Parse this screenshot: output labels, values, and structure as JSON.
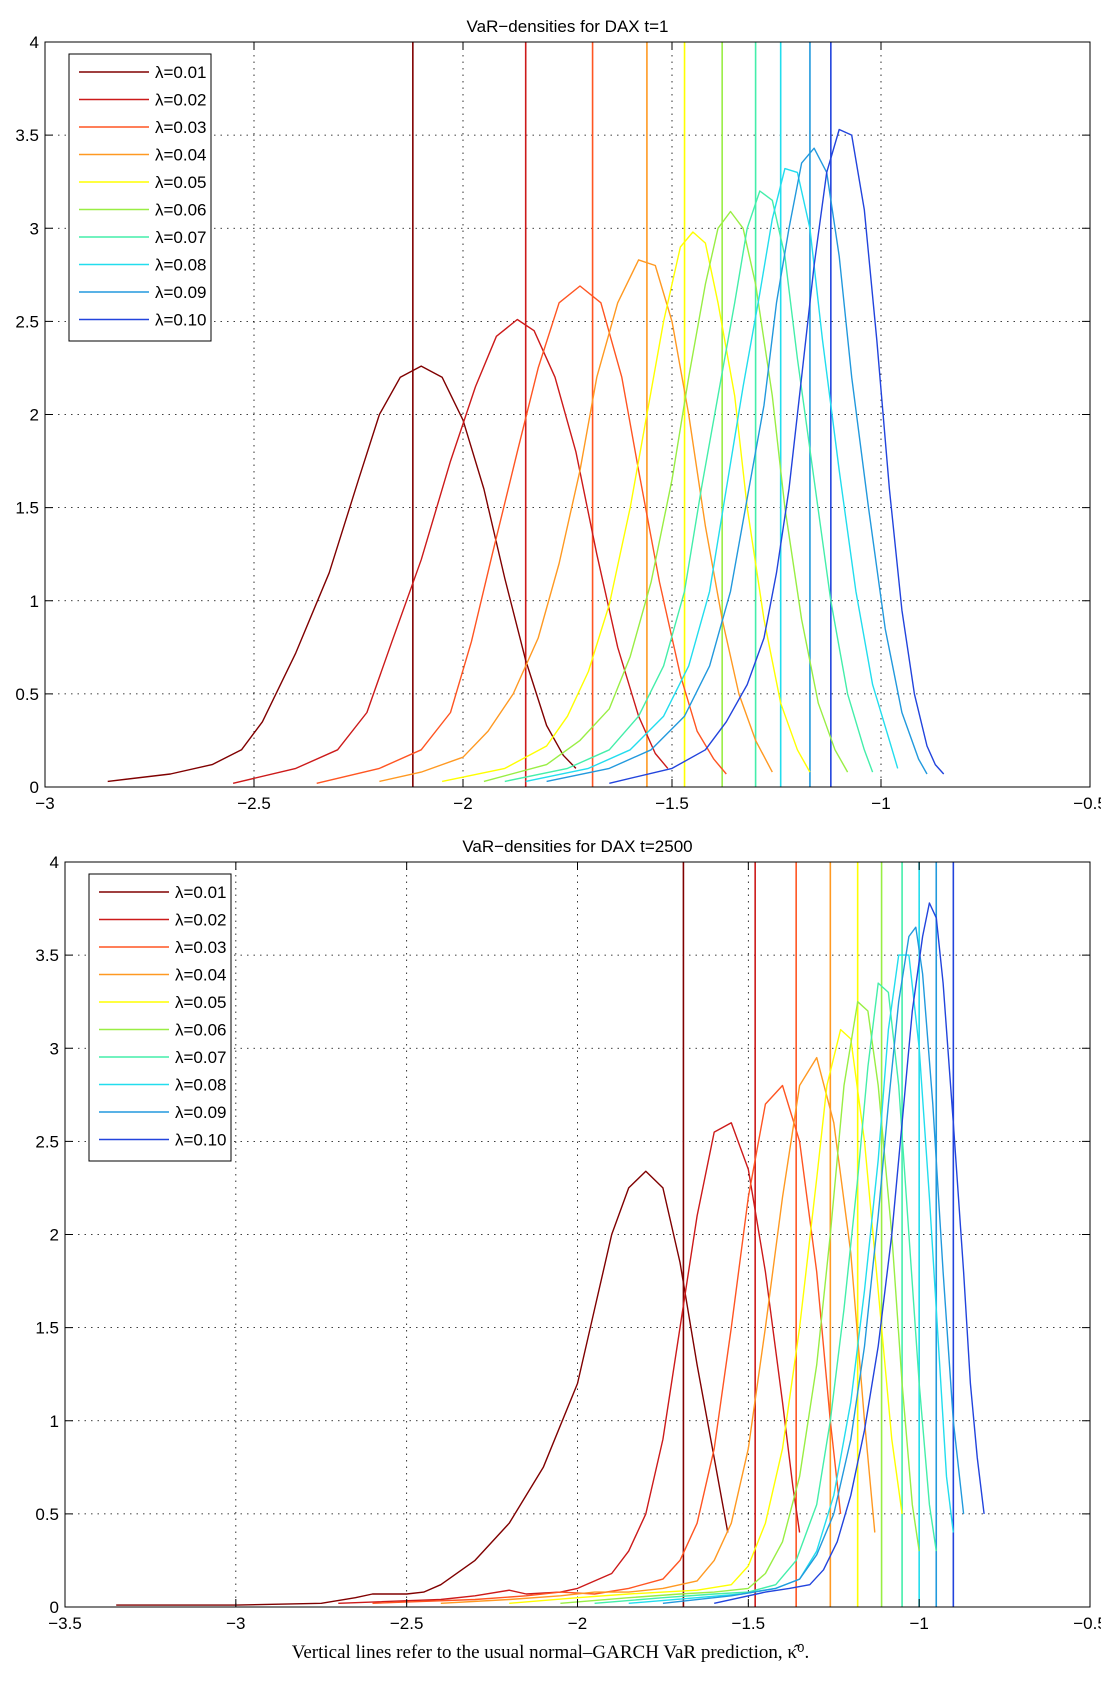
{
  "figure": {
    "caption": "Vertical lines refer to the usual normal–GARCH VaR prediction, κ̂⁰."
  },
  "chart_data": [
    {
      "type": "line",
      "title": "VaR−densities for DAX t=1",
      "xlabel": "",
      "ylabel": "",
      "xlim": [
        -3,
        -0.5
      ],
      "ylim": [
        0,
        4
      ],
      "xticks": [
        -3,
        -2.5,
        -2,
        -1.5,
        -1,
        -0.5
      ],
      "xtick_labels": [
        "−3",
        "−2.5",
        "−2",
        "−1.5",
        "−1",
        "−0.5"
      ],
      "yticks": [
        0,
        0.5,
        1,
        1.5,
        2,
        2.5,
        3,
        3.5,
        4
      ],
      "ytick_labels": [
        "0",
        "0.5",
        "1",
        "1.5",
        "2",
        "2.5",
        "3",
        "3.5",
        "4"
      ],
      "grid": true,
      "legend": "top-left",
      "series": [
        {
          "name": "λ=0.01",
          "color": "#800000",
          "var_line": -2.12,
          "x": [
            -2.85,
            -2.7,
            -2.6,
            -2.53,
            -2.48,
            -2.4,
            -2.32,
            -2.25,
            -2.2,
            -2.15,
            -2.1,
            -2.05,
            -2.0,
            -1.95,
            -1.9,
            -1.85,
            -1.8,
            -1.76,
            -1.73
          ],
          "y": [
            0.03,
            0.07,
            0.12,
            0.2,
            0.35,
            0.72,
            1.15,
            1.65,
            2.0,
            2.2,
            2.26,
            2.2,
            1.97,
            1.6,
            1.12,
            0.68,
            0.33,
            0.17,
            0.1
          ]
        },
        {
          "name": "λ=0.02",
          "color": "#cc1a1a",
          "var_line": -1.85,
          "x": [
            -2.55,
            -2.4,
            -2.3,
            -2.23,
            -2.17,
            -2.1,
            -2.03,
            -1.97,
            -1.92,
            -1.87,
            -1.83,
            -1.78,
            -1.73,
            -1.68,
            -1.63,
            -1.58,
            -1.54,
            -1.51
          ],
          "y": [
            0.02,
            0.1,
            0.2,
            0.4,
            0.78,
            1.22,
            1.75,
            2.15,
            2.42,
            2.51,
            2.45,
            2.2,
            1.8,
            1.25,
            0.75,
            0.38,
            0.18,
            0.1
          ]
        },
        {
          "name": "λ=0.03",
          "color": "#ff5522",
          "var_line": -1.69,
          "x": [
            -2.35,
            -2.2,
            -2.1,
            -2.03,
            -1.98,
            -1.93,
            -1.87,
            -1.82,
            -1.77,
            -1.72,
            -1.67,
            -1.62,
            -1.58,
            -1.53,
            -1.48,
            -1.44,
            -1.4,
            -1.37
          ],
          "y": [
            0.02,
            0.1,
            0.2,
            0.4,
            0.78,
            1.25,
            1.8,
            2.25,
            2.6,
            2.69,
            2.6,
            2.2,
            1.7,
            1.1,
            0.6,
            0.3,
            0.15,
            0.07
          ]
        },
        {
          "name": "λ=0.04",
          "color": "#ff9922",
          "var_line": -1.56,
          "x": [
            -2.2,
            -2.1,
            -2.0,
            -1.94,
            -1.88,
            -1.82,
            -1.77,
            -1.72,
            -1.68,
            -1.63,
            -1.58,
            -1.54,
            -1.5,
            -1.46,
            -1.42,
            -1.38,
            -1.34,
            -1.3,
            -1.26
          ],
          "y": [
            0.03,
            0.08,
            0.16,
            0.3,
            0.5,
            0.8,
            1.2,
            1.7,
            2.2,
            2.6,
            2.83,
            2.8,
            2.5,
            2.0,
            1.4,
            0.9,
            0.5,
            0.25,
            0.08
          ]
        },
        {
          "name": "λ=0.05",
          "color": "#ffff00",
          "var_line": -1.47,
          "x": [
            -2.05,
            -1.9,
            -1.8,
            -1.75,
            -1.7,
            -1.65,
            -1.6,
            -1.56,
            -1.52,
            -1.48,
            -1.45,
            -1.42,
            -1.39,
            -1.35,
            -1.32,
            -1.28,
            -1.24,
            -1.2,
            -1.17
          ],
          "y": [
            0.03,
            0.1,
            0.22,
            0.38,
            0.62,
            0.98,
            1.5,
            2.0,
            2.5,
            2.9,
            2.98,
            2.92,
            2.6,
            2.1,
            1.5,
            0.9,
            0.45,
            0.2,
            0.08
          ]
        },
        {
          "name": "λ=0.06",
          "color": "#99ee44",
          "var_line": -1.38,
          "x": [
            -1.95,
            -1.8,
            -1.72,
            -1.65,
            -1.6,
            -1.55,
            -1.5,
            -1.46,
            -1.42,
            -1.39,
            -1.36,
            -1.33,
            -1.3,
            -1.26,
            -1.23,
            -1.19,
            -1.15,
            -1.11,
            -1.08
          ],
          "y": [
            0.03,
            0.12,
            0.25,
            0.42,
            0.7,
            1.1,
            1.65,
            2.2,
            2.7,
            3.0,
            3.09,
            3.0,
            2.7,
            2.1,
            1.5,
            0.9,
            0.45,
            0.2,
            0.08
          ]
        },
        {
          "name": "λ=0.07",
          "color": "#44eeaa",
          "var_line": -1.3,
          "x": [
            -1.9,
            -1.75,
            -1.65,
            -1.58,
            -1.52,
            -1.47,
            -1.43,
            -1.39,
            -1.35,
            -1.32,
            -1.29,
            -1.26,
            -1.23,
            -1.2,
            -1.16,
            -1.12,
            -1.08,
            -1.04,
            -1.02
          ],
          "y": [
            0.03,
            0.1,
            0.2,
            0.38,
            0.65,
            1.05,
            1.6,
            2.1,
            2.6,
            3.0,
            3.2,
            3.15,
            2.85,
            2.3,
            1.65,
            1.0,
            0.5,
            0.2,
            0.08
          ]
        },
        {
          "name": "λ=0.08",
          "color": "#22ddee",
          "var_line": -1.24,
          "x": [
            -1.85,
            -1.7,
            -1.6,
            -1.52,
            -1.46,
            -1.41,
            -1.37,
            -1.33,
            -1.29,
            -1.26,
            -1.23,
            -1.2,
            -1.17,
            -1.14,
            -1.1,
            -1.06,
            -1.02,
            -0.98,
            -0.96
          ],
          "y": [
            0.03,
            0.1,
            0.2,
            0.38,
            0.65,
            1.05,
            1.6,
            2.15,
            2.65,
            3.05,
            3.32,
            3.3,
            3.0,
            2.4,
            1.7,
            1.05,
            0.55,
            0.25,
            0.1
          ]
        },
        {
          "name": "λ=0.09",
          "color": "#2299dd",
          "var_line": -1.17,
          "x": [
            -1.8,
            -1.65,
            -1.55,
            -1.47,
            -1.41,
            -1.36,
            -1.32,
            -1.28,
            -1.25,
            -1.22,
            -1.19,
            -1.16,
            -1.13,
            -1.1,
            -1.07,
            -1.03,
            -0.99,
            -0.95,
            -0.91,
            -0.89
          ],
          "y": [
            0.03,
            0.1,
            0.2,
            0.38,
            0.65,
            1.05,
            1.55,
            2.05,
            2.6,
            3.0,
            3.35,
            3.43,
            3.3,
            2.85,
            2.2,
            1.5,
            0.85,
            0.4,
            0.15,
            0.07
          ]
        },
        {
          "name": "λ=0.10",
          "color": "#2244dd",
          "var_line": -1.12,
          "x": [
            -1.65,
            -1.5,
            -1.42,
            -1.37,
            -1.32,
            -1.28,
            -1.25,
            -1.22,
            -1.19,
            -1.16,
            -1.13,
            -1.1,
            -1.07,
            -1.04,
            -1.01,
            -0.98,
            -0.95,
            -0.92,
            -0.89,
            -0.87,
            -0.85
          ],
          "y": [
            0.02,
            0.1,
            0.2,
            0.35,
            0.55,
            0.8,
            1.15,
            1.6,
            2.2,
            2.8,
            3.3,
            3.53,
            3.5,
            3.1,
            2.4,
            1.6,
            0.95,
            0.5,
            0.22,
            0.12,
            0.07
          ]
        }
      ]
    },
    {
      "type": "line",
      "title": "VaR−densities for DAX t=2500",
      "xlabel": "",
      "ylabel": "",
      "xlim": [
        -3.5,
        -0.5
      ],
      "ylim": [
        0,
        4
      ],
      "xticks": [
        -3.5,
        -3,
        -2.5,
        -2,
        -1.5,
        -1,
        -0.5
      ],
      "xtick_labels": [
        "−3.5",
        "−3",
        "−2.5",
        "−2",
        "−1.5",
        "−1",
        "−0.5"
      ],
      "yticks": [
        0,
        0.5,
        1,
        1.5,
        2,
        2.5,
        3,
        3.5,
        4
      ],
      "ytick_labels": [
        "0",
        "0.5",
        "1",
        "1.5",
        "2",
        "2.5",
        "3",
        "3.5",
        "4"
      ],
      "grid": true,
      "legend": "top-left",
      "series": [
        {
          "name": "λ=0.01",
          "color": "#800000",
          "var_line": -1.69,
          "x": [
            -3.35,
            -3.0,
            -2.75,
            -2.65,
            -2.6,
            -2.5,
            -2.45,
            -2.4,
            -2.3,
            -2.2,
            -2.1,
            -2.0,
            -1.95,
            -1.9,
            -1.85,
            -1.8,
            -1.75,
            -1.7,
            -1.65,
            -1.6,
            -1.56
          ],
          "y": [
            0.01,
            0.01,
            0.02,
            0.05,
            0.07,
            0.07,
            0.08,
            0.12,
            0.25,
            0.45,
            0.75,
            1.2,
            1.6,
            2.0,
            2.25,
            2.34,
            2.25,
            1.85,
            1.3,
            0.8,
            0.4
          ]
        },
        {
          "name": "λ=0.02",
          "color": "#cc1a1a",
          "var_line": -1.48,
          "x": [
            -2.7,
            -2.4,
            -2.3,
            -2.2,
            -2.15,
            -2.05,
            -2.0,
            -1.9,
            -1.85,
            -1.8,
            -1.75,
            -1.7,
            -1.65,
            -1.6,
            -1.55,
            -1.5,
            -1.45,
            -1.4,
            -1.37,
            -1.35
          ],
          "y": [
            0.02,
            0.04,
            0.06,
            0.09,
            0.07,
            0.08,
            0.1,
            0.18,
            0.3,
            0.5,
            0.9,
            1.5,
            2.1,
            2.55,
            2.6,
            2.35,
            1.8,
            1.1,
            0.65,
            0.4
          ]
        },
        {
          "name": "λ=0.03",
          "color": "#ff5522",
          "var_line": -1.36,
          "x": [
            -2.6,
            -2.3,
            -2.15,
            -2.05,
            -1.95,
            -1.85,
            -1.75,
            -1.7,
            -1.65,
            -1.6,
            -1.55,
            -1.5,
            -1.45,
            -1.4,
            -1.35,
            -1.3,
            -1.26,
            -1.23
          ],
          "y": [
            0.02,
            0.04,
            0.06,
            0.08,
            0.07,
            0.1,
            0.15,
            0.25,
            0.45,
            0.85,
            1.5,
            2.2,
            2.7,
            2.8,
            2.5,
            1.8,
            1.0,
            0.5
          ]
        },
        {
          "name": "λ=0.04",
          "color": "#ff9922",
          "var_line": -1.26,
          "x": [
            -2.4,
            -2.2,
            -2.05,
            -1.95,
            -1.85,
            -1.75,
            -1.65,
            -1.6,
            -1.55,
            -1.5,
            -1.45,
            -1.4,
            -1.35,
            -1.3,
            -1.25,
            -1.2,
            -1.16,
            -1.13
          ],
          "y": [
            0.02,
            0.04,
            0.06,
            0.08,
            0.08,
            0.1,
            0.14,
            0.25,
            0.45,
            0.85,
            1.5,
            2.2,
            2.8,
            2.95,
            2.6,
            1.9,
            1.0,
            0.4
          ]
        },
        {
          "name": "λ=0.05",
          "color": "#ffff00",
          "var_line": -1.18,
          "x": [
            -2.2,
            -2.0,
            -1.85,
            -1.75,
            -1.65,
            -1.55,
            -1.5,
            -1.45,
            -1.4,
            -1.35,
            -1.3,
            -1.27,
            -1.23,
            -1.2,
            -1.16,
            -1.12,
            -1.08,
            -1.05
          ],
          "y": [
            0.02,
            0.05,
            0.07,
            0.08,
            0.09,
            0.12,
            0.22,
            0.45,
            0.85,
            1.5,
            2.3,
            2.8,
            3.1,
            3.05,
            2.5,
            1.7,
            0.9,
            0.5
          ]
        },
        {
          "name": "λ=0.06",
          "color": "#99ee44",
          "var_line": -1.11,
          "x": [
            -2.05,
            -1.85,
            -1.7,
            -1.6,
            -1.5,
            -1.45,
            -1.4,
            -1.35,
            -1.3,
            -1.26,
            -1.22,
            -1.18,
            -1.15,
            -1.12,
            -1.08,
            -1.05,
            -1.02,
            -1.0
          ],
          "y": [
            0.02,
            0.05,
            0.07,
            0.08,
            0.1,
            0.18,
            0.35,
            0.7,
            1.3,
            2.0,
            2.8,
            3.25,
            3.2,
            2.8,
            2.0,
            1.2,
            0.55,
            0.3
          ]
        },
        {
          "name": "λ=0.07",
          "color": "#44eeaa",
          "var_line": -1.05,
          "x": [
            -1.95,
            -1.75,
            -1.6,
            -1.5,
            -1.42,
            -1.36,
            -1.3,
            -1.26,
            -1.22,
            -1.18,
            -1.15,
            -1.12,
            -1.09,
            -1.06,
            -1.03,
            -1.0,
            -0.97,
            -0.95
          ],
          "y": [
            0.02,
            0.05,
            0.07,
            0.08,
            0.12,
            0.25,
            0.55,
            1.0,
            1.6,
            2.3,
            2.9,
            3.35,
            3.3,
            2.8,
            2.0,
            1.2,
            0.55,
            0.3
          ]
        },
        {
          "name": "λ=0.08",
          "color": "#22ddee",
          "var_line": -1.0,
          "x": [
            -1.85,
            -1.65,
            -1.52,
            -1.42,
            -1.35,
            -1.3,
            -1.25,
            -1.2,
            -1.16,
            -1.12,
            -1.09,
            -1.06,
            -1.03,
            -1.0,
            -0.97,
            -0.94,
            -0.92,
            -0.9
          ],
          "y": [
            0.02,
            0.05,
            0.07,
            0.1,
            0.15,
            0.3,
            0.6,
            1.1,
            1.7,
            2.4,
            3.1,
            3.5,
            3.5,
            3.0,
            2.2,
            1.3,
            0.7,
            0.4
          ]
        },
        {
          "name": "λ=0.09",
          "color": "#2299dd",
          "var_line": -0.95,
          "x": [
            -1.75,
            -1.55,
            -1.42,
            -1.35,
            -1.3,
            -1.25,
            -1.2,
            -1.16,
            -1.12,
            -1.09,
            -1.06,
            -1.03,
            -1.01,
            -0.99,
            -0.96,
            -0.93,
            -0.9,
            -0.87
          ],
          "y": [
            0.02,
            0.06,
            0.1,
            0.15,
            0.28,
            0.5,
            0.9,
            1.4,
            2.1,
            2.7,
            3.25,
            3.6,
            3.65,
            3.4,
            2.7,
            1.8,
            1.0,
            0.5
          ]
        },
        {
          "name": "λ=0.10",
          "color": "#2244dd",
          "var_line": -0.9,
          "x": [
            -1.6,
            -1.45,
            -1.38,
            -1.32,
            -1.28,
            -1.24,
            -1.2,
            -1.16,
            -1.12,
            -1.08,
            -1.05,
            -1.02,
            -0.99,
            -0.97,
            -0.95,
            -0.93,
            -0.9,
            -0.87,
            -0.85,
            -0.83,
            -0.81
          ],
          "y": [
            0.02,
            0.08,
            0.1,
            0.12,
            0.2,
            0.35,
            0.6,
            0.95,
            1.4,
            2.0,
            2.6,
            3.2,
            3.6,
            3.78,
            3.7,
            3.35,
            2.6,
            1.8,
            1.2,
            0.8,
            0.5
          ]
        }
      ]
    }
  ]
}
